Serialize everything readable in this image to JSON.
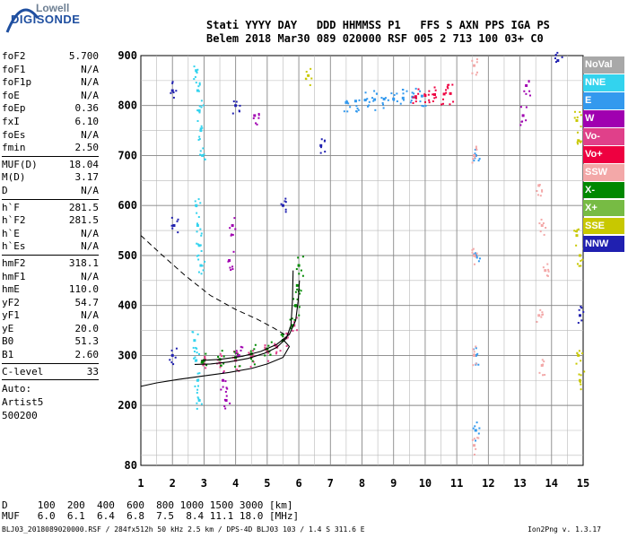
{
  "header": {
    "line1": "Stati YYYY DAY   DDD HHMMSS P1   FFS S AXN PPS IGA PS",
    "line2": "Belem 2018 Mar30 089 020000 RSF 005 2 713 100 03+ C0"
  },
  "logo": {
    "line1": "Lowell",
    "line2": "DIGISONDE"
  },
  "params": [
    {
      "name": "foF2",
      "value": "5.700"
    },
    {
      "name": "foF1",
      "value": "N/A"
    },
    {
      "name": "foF1p",
      "value": "N/A"
    },
    {
      "name": "foE",
      "value": "N/A"
    },
    {
      "name": "foEp",
      "value": "0.36"
    },
    {
      "name": "fxI",
      "value": "6.10"
    },
    {
      "name": "foEs",
      "value": "N/A"
    },
    {
      "name": "fmin",
      "value": "2.50"
    },
    {
      "sep": true
    },
    {
      "name": "MUF(D)",
      "value": "18.04"
    },
    {
      "name": "M(D)",
      "value": "3.17"
    },
    {
      "name": "D",
      "value": "N/A"
    },
    {
      "sep": true
    },
    {
      "name": "h`F",
      "value": "281.5"
    },
    {
      "name": "h`F2",
      "value": "281.5"
    },
    {
      "name": "h`E",
      "value": "N/A"
    },
    {
      "name": "h`Es",
      "value": "N/A"
    },
    {
      "sep": true
    },
    {
      "name": "hmF2",
      "value": "318.1"
    },
    {
      "name": "hmF1",
      "value": "N/A"
    },
    {
      "name": "hmE",
      "value": "110.0"
    },
    {
      "name": "yF2",
      "value": "54.7"
    },
    {
      "name": "yF1",
      "value": "N/A"
    },
    {
      "name": "yE",
      "value": "20.0"
    },
    {
      "name": "B0",
      "value": "51.3"
    },
    {
      "name": "B1",
      "value": "2.60"
    },
    {
      "sep": true
    },
    {
      "name": "C-level",
      "value": "33"
    },
    {
      "sep": true
    }
  ],
  "auto": [
    "Auto:",
    "Artist5",
    "500200"
  ],
  "legend": [
    {
      "label": "NoVal",
      "color": "#a8a8a8"
    },
    {
      "label": "NNE",
      "color": "#33d3ee"
    },
    {
      "label": "E",
      "color": "#3399ee"
    },
    {
      "label": "W",
      "color": "#a000b0"
    },
    {
      "label": "Vo-",
      "color": "#e0408a"
    },
    {
      "label": "Vo+",
      "color": "#ee0040"
    },
    {
      "label": "SSW",
      "color": "#f3a8a8"
    },
    {
      "label": "X-",
      "color": "#008800"
    },
    {
      "label": "X+",
      "color": "#77bb44"
    },
    {
      "label": "SSE",
      "color": "#c8c800"
    },
    {
      "label": "NNW",
      "color": "#2020b0"
    }
  ],
  "bottom": {
    "d_line": "D     100  200  400  600  800 1000 1500 3000 [km]",
    "muf_line": "MUF   6.0  6.1  6.4  6.8  7.5  8.4 11.1 18.0 [MHz]"
  },
  "footer": {
    "left": "BLJ03_2018089020000.RSF / 284fx512h 50 kHz 2.5 km / DPS-4D BLJ03 103 / 1.4 S 311.6 E",
    "right": "Ion2Png v. 1.3.17"
  },
  "chart_data": {
    "type": "scatter",
    "xlim": [
      1,
      15
    ],
    "ylim": [
      80,
      900
    ],
    "xticks": [
      1,
      2,
      3,
      4,
      5,
      6,
      7,
      8,
      9,
      10,
      11,
      12,
      13,
      14,
      15
    ],
    "yticks": [
      80,
      200,
      300,
      400,
      500,
      600,
      700,
      800,
      900
    ],
    "grid": true,
    "series": [
      {
        "name": "NNE",
        "color": "#33d3ee",
        "points": [
          [
            2.75,
            870
          ],
          [
            2.8,
            830
          ],
          [
            2.85,
            790
          ],
          [
            2.9,
            750
          ],
          [
            2.95,
            700
          ],
          [
            2.75,
            600
          ],
          [
            2.8,
            560
          ],
          [
            2.85,
            520
          ],
          [
            2.9,
            480
          ],
          [
            2.7,
            330
          ],
          [
            2.75,
            290
          ],
          [
            2.8,
            250
          ],
          [
            2.85,
            210
          ]
        ]
      },
      {
        "name": "E",
        "color": "#3399ee",
        "points": [
          [
            7.5,
            806
          ],
          [
            7.8,
            809
          ],
          [
            8.1,
            811
          ],
          [
            8.4,
            812
          ],
          [
            8.7,
            813
          ],
          [
            9.0,
            813
          ],
          [
            9.3,
            815
          ],
          [
            9.6,
            817
          ],
          [
            9.9,
            819
          ],
          [
            11.6,
            700
          ],
          [
            11.6,
            500
          ],
          [
            11.6,
            300
          ],
          [
            11.6,
            150
          ]
        ]
      },
      {
        "name": "Vo-",
        "color": "#e0408a",
        "points": [
          [
            3.0,
            283
          ],
          [
            3.5,
            285
          ],
          [
            4.0,
            290
          ],
          [
            4.5,
            297
          ],
          [
            5.0,
            308
          ],
          [
            5.3,
            318
          ],
          [
            5.6,
            335
          ],
          [
            5.85,
            360
          ]
        ]
      },
      {
        "name": "Vo+",
        "color": "#ee0040",
        "points": [
          [
            9.7,
            818
          ],
          [
            10.0,
            820
          ],
          [
            10.3,
            822
          ],
          [
            10.6,
            823
          ],
          [
            10.8,
            824
          ]
        ]
      },
      {
        "name": "X-",
        "color": "#008800",
        "points": [
          [
            3.0,
            290
          ],
          [
            3.5,
            292
          ],
          [
            4.0,
            296
          ],
          [
            4.5,
            303
          ],
          [
            5.0,
            313
          ],
          [
            5.5,
            330
          ],
          [
            5.8,
            360
          ],
          [
            5.9,
            400
          ],
          [
            5.95,
            440
          ],
          [
            6.0,
            480
          ]
        ]
      },
      {
        "name": "SSW",
        "color": "#f3a8a8",
        "points": [
          [
            11.55,
            880
          ],
          [
            11.55,
            700
          ],
          [
            11.55,
            500
          ],
          [
            11.55,
            300
          ],
          [
            11.55,
            120
          ],
          [
            13.6,
            640
          ],
          [
            13.7,
            560
          ],
          [
            13.8,
            470
          ],
          [
            13.6,
            380
          ],
          [
            13.7,
            280
          ]
        ]
      },
      {
        "name": "SSE",
        "color": "#c8c800",
        "points": [
          [
            14.8,
            770
          ],
          [
            14.85,
            730
          ],
          [
            14.8,
            540
          ],
          [
            14.9,
            500
          ],
          [
            14.85,
            300
          ],
          [
            14.9,
            250
          ],
          [
            6.3,
            860
          ]
        ]
      },
      {
        "name": "W",
        "color": "#a000b0",
        "points": [
          [
            3.6,
            250
          ],
          [
            3.7,
            210
          ],
          [
            3.8,
            490
          ],
          [
            3.9,
            560
          ],
          [
            4.1,
            300
          ],
          [
            4.6,
            780
          ],
          [
            13.1,
            780
          ],
          [
            13.2,
            840
          ]
        ]
      },
      {
        "name": "NNW",
        "color": "#2020b0",
        "points": [
          [
            2.0,
            830
          ],
          [
            2.05,
            560
          ],
          [
            2.0,
            300
          ],
          [
            4.0,
            800
          ],
          [
            5.5,
            600
          ],
          [
            6.7,
            720
          ],
          [
            14.9,
            380
          ],
          [
            14.2,
            890
          ]
        ]
      }
    ]
  }
}
